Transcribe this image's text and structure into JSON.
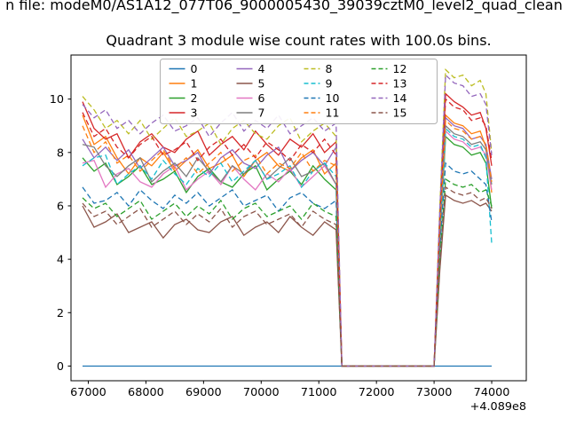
{
  "figure": {
    "background": "#ffffff"
  },
  "chart_data": {
    "type": "line",
    "suptitle": "n file: modeM0/AS1A12_077T06_9000005430_39039cztM0_level2_quad_clean",
    "title": "Quadrant 3 module wise count rates with 100.0s bins.",
    "xlabel": "",
    "ylabel": "",
    "x_offset_label": "+4.089e8",
    "grid": false,
    "legend_position": "upper center, 4 columns, column-major",
    "xlim": [
      66700,
      74600
    ],
    "ylim": [
      -0.55,
      11.65
    ],
    "xticks": [
      67000,
      68000,
      69000,
      70000,
      71000,
      72000,
      73000,
      74000
    ],
    "yticks": [
      0,
      2,
      4,
      6,
      8,
      10
    ],
    "x": [
      66900,
      67100,
      67300,
      67500,
      67700,
      67900,
      68100,
      68300,
      68500,
      68700,
      68900,
      69100,
      69300,
      69500,
      69700,
      69900,
      70100,
      70300,
      70500,
      70700,
      70900,
      71100,
      71300,
      71400,
      73000,
      73100,
      73200,
      73350,
      73500,
      73650,
      73800,
      73900,
      74000
    ],
    "series": [
      {
        "name": "0",
        "color": "#1f77b4",
        "dashed": false,
        "values": [
          0,
          0,
          0,
          0,
          0,
          0,
          0,
          0,
          0,
          0,
          0,
          0,
          0,
          0,
          0,
          0,
          0,
          0,
          0,
          0,
          0,
          0,
          0,
          0,
          0,
          0,
          0,
          0,
          0,
          0,
          0,
          0,
          0
        ]
      },
      {
        "name": "1",
        "color": "#ff7f0e",
        "dashed": false,
        "values": [
          9.4,
          8.3,
          8.6,
          7.8,
          7.2,
          7.8,
          7.5,
          8.0,
          7.3,
          7.7,
          8.1,
          7.4,
          7.6,
          7.9,
          7.1,
          7.7,
          8.0,
          7.5,
          7.3,
          7.8,
          8.1,
          7.2,
          7.6,
          0,
          0,
          5.2,
          9.4,
          9.1,
          9.0,
          8.7,
          8.8,
          8.2,
          6.5
        ]
      },
      {
        "name": "2",
        "color": "#2ca02c",
        "dashed": false,
        "values": [
          7.8,
          7.3,
          7.6,
          6.8,
          7.1,
          7.5,
          6.8,
          7.0,
          7.3,
          6.5,
          7.1,
          7.4,
          6.9,
          6.7,
          7.2,
          7.5,
          6.6,
          7.0,
          7.3,
          6.8,
          7.5,
          7.0,
          6.6,
          0,
          0,
          4.6,
          8.6,
          8.3,
          8.2,
          7.9,
          8.0,
          7.6,
          5.9
        ]
      },
      {
        "name": "3",
        "color": "#d62728",
        "dashed": false,
        "values": [
          9.9,
          8.9,
          8.5,
          8.7,
          7.8,
          8.4,
          8.7,
          8.2,
          8.0,
          8.5,
          8.8,
          7.9,
          8.3,
          8.6,
          8.1,
          8.8,
          8.3,
          7.9,
          8.5,
          8.2,
          8.7,
          8.0,
          8.4,
          0,
          0,
          5.6,
          10.2,
          9.9,
          9.7,
          9.4,
          9.5,
          8.9,
          7.5
        ]
      },
      {
        "name": "4",
        "color": "#9467bd",
        "dashed": false,
        "values": [
          8.5,
          7.8,
          8.2,
          7.7,
          8.1,
          7.4,
          7.8,
          8.2,
          7.5,
          7.7,
          8.0,
          7.2,
          7.8,
          8.1,
          7.6,
          7.4,
          7.9,
          8.2,
          7.3,
          7.7,
          8.0,
          7.5,
          8.2,
          0,
          0,
          5.4,
          9.3,
          9.0,
          8.9,
          8.5,
          8.6,
          8.3,
          7.0
        ]
      },
      {
        "name": "5",
        "color": "#8c564b",
        "dashed": false,
        "values": [
          6.0,
          5.2,
          5.4,
          5.7,
          5.0,
          5.2,
          5.4,
          4.8,
          5.3,
          5.5,
          5.1,
          5.0,
          5.4,
          5.6,
          4.9,
          5.2,
          5.4,
          5.0,
          5.6,
          5.2,
          4.9,
          5.4,
          5.1,
          0,
          0,
          3.6,
          6.4,
          6.2,
          6.1,
          6.2,
          6.0,
          6.1,
          5.8
        ]
      },
      {
        "name": "6",
        "color": "#e377c2",
        "dashed": false,
        "values": [
          7.6,
          7.7,
          6.7,
          7.2,
          7.4,
          6.9,
          6.7,
          7.2,
          7.5,
          6.6,
          7.0,
          7.3,
          6.8,
          7.5,
          7.0,
          6.6,
          7.2,
          6.9,
          7.4,
          6.7,
          7.1,
          7.5,
          6.8,
          0,
          0,
          4.8,
          8.8,
          8.5,
          8.4,
          8.1,
          8.2,
          7.9,
          6.6
        ]
      },
      {
        "name": "7",
        "color": "#7f7f7f",
        "dashed": false,
        "values": [
          8.3,
          8.2,
          7.5,
          7.1,
          7.5,
          7.8,
          6.9,
          7.3,
          7.6,
          7.1,
          7.8,
          7.3,
          6.9,
          7.5,
          7.2,
          7.7,
          7.0,
          7.4,
          7.8,
          7.1,
          7.3,
          7.6,
          6.8,
          0,
          0,
          5.0,
          9.0,
          8.7,
          8.6,
          8.3,
          8.4,
          8.1,
          6.8
        ]
      },
      {
        "name": "8",
        "color": "#bcbd22",
        "dashed": true,
        "values": [
          10.1,
          9.6,
          8.9,
          9.2,
          8.7,
          9.2,
          8.5,
          8.9,
          9.3,
          8.6,
          8.8,
          9.1,
          8.3,
          8.9,
          9.2,
          8.7,
          8.5,
          9.0,
          9.3,
          8.4,
          8.8,
          9.1,
          8.6,
          0,
          0,
          6.0,
          11.1,
          10.8,
          10.9,
          10.5,
          10.7,
          10.2,
          8.0
        ]
      },
      {
        "name": "9",
        "color": "#17becf",
        "dashed": true,
        "values": [
          7.5,
          7.8,
          7.9,
          6.8,
          7.2,
          7.5,
          7.0,
          7.7,
          7.2,
          6.8,
          7.4,
          7.1,
          7.6,
          6.9,
          7.3,
          7.7,
          7.0,
          7.2,
          7.5,
          6.7,
          7.3,
          7.6,
          7.1,
          0,
          0,
          4.9,
          8.9,
          8.6,
          8.5,
          8.2,
          8.3,
          7.8,
          4.6
        ]
      },
      {
        "name": "10",
        "color": "#1f77b4",
        "dashed": true,
        "values": [
          6.7,
          6.1,
          6.2,
          6.5,
          6.0,
          6.6,
          6.2,
          5.9,
          6.4,
          6.1,
          6.5,
          6.0,
          6.3,
          6.6,
          6.0,
          6.2,
          6.4,
          5.8,
          6.3,
          6.5,
          6.1,
          5.9,
          6.2,
          0,
          0,
          4.4,
          7.6,
          7.3,
          7.2,
          7.3,
          7.0,
          6.8,
          5.4
        ]
      },
      {
        "name": "11",
        "color": "#ff7f0e",
        "dashed": true,
        "values": [
          9.0,
          8.0,
          8.4,
          7.6,
          7.9,
          7.3,
          7.7,
          8.1,
          7.4,
          7.8,
          7.2,
          7.6,
          8.0,
          7.3,
          7.7,
          7.9,
          7.2,
          7.6,
          7.4,
          8.0,
          7.3,
          7.7,
          7.5,
          0,
          0,
          5.1,
          9.2,
          8.9,
          8.8,
          8.5,
          8.6,
          8.3,
          6.9
        ]
      },
      {
        "name": "12",
        "color": "#2ca02c",
        "dashed": true,
        "values": [
          6.3,
          5.9,
          6.1,
          5.6,
          5.9,
          6.2,
          5.5,
          5.8,
          6.1,
          5.6,
          6.0,
          5.7,
          6.2,
          5.5,
          5.9,
          6.1,
          5.6,
          5.8,
          6.0,
          5.5,
          6.1,
          5.8,
          5.6,
          0,
          0,
          4.0,
          7.0,
          6.8,
          6.7,
          6.8,
          6.5,
          6.6,
          6.0
        ]
      },
      {
        "name": "13",
        "color": "#d62728",
        "dashed": true,
        "values": [
          9.5,
          8.6,
          8.9,
          8.2,
          7.8,
          8.3,
          8.6,
          7.9,
          8.1,
          8.4,
          7.7,
          8.2,
          8.5,
          7.9,
          8.3,
          7.8,
          8.4,
          8.1,
          7.7,
          8.3,
          8.0,
          8.5,
          7.9,
          0,
          0,
          5.5,
          10.0,
          9.7,
          9.6,
          9.2,
          9.3,
          9.0,
          7.7
        ]
      },
      {
        "name": "14",
        "color": "#9467bd",
        "dashed": true,
        "values": [
          9.8,
          9.3,
          9.6,
          8.9,
          9.2,
          8.7,
          9.1,
          9.4,
          8.8,
          9.0,
          9.3,
          8.6,
          9.1,
          9.5,
          8.8,
          9.2,
          8.9,
          9.4,
          8.7,
          9.0,
          9.3,
          8.8,
          9.1,
          0,
          0,
          5.9,
          10.9,
          10.6,
          10.5,
          10.1,
          10.2,
          9.8,
          7.9
        ]
      },
      {
        "name": "15",
        "color": "#8c564b",
        "dashed": true,
        "values": [
          6.1,
          5.6,
          5.8,
          5.3,
          5.6,
          5.9,
          5.2,
          5.5,
          5.8,
          5.3,
          5.7,
          5.4,
          5.9,
          5.2,
          5.6,
          5.8,
          5.3,
          5.5,
          5.7,
          5.2,
          5.8,
          5.5,
          5.3,
          0,
          0,
          3.8,
          6.7,
          6.5,
          6.4,
          6.5,
          6.2,
          6.3,
          5.9
        ]
      }
    ]
  }
}
